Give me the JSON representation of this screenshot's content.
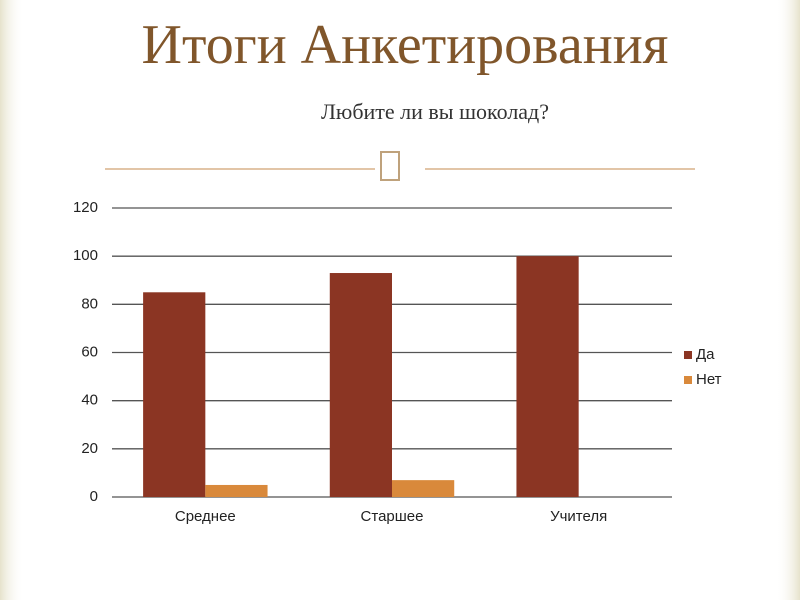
{
  "chart_data": {
    "type": "bar",
    "title": "Итоги Анкетирования",
    "subtitle": "Любите ли вы шоколад?",
    "categories": [
      "Среднее",
      "Старшее",
      "Учителя"
    ],
    "series": [
      {
        "name": "Да",
        "color": "#8b3523",
        "values": [
          85,
          93,
          100
        ]
      },
      {
        "name": "Нет",
        "color": "#d9893b",
        "values": [
          5,
          7,
          0
        ]
      }
    ],
    "ylim": [
      0,
      120
    ],
    "yticks": [
      0,
      20,
      40,
      60,
      80,
      100,
      120
    ],
    "grid": true,
    "legend": "right"
  }
}
